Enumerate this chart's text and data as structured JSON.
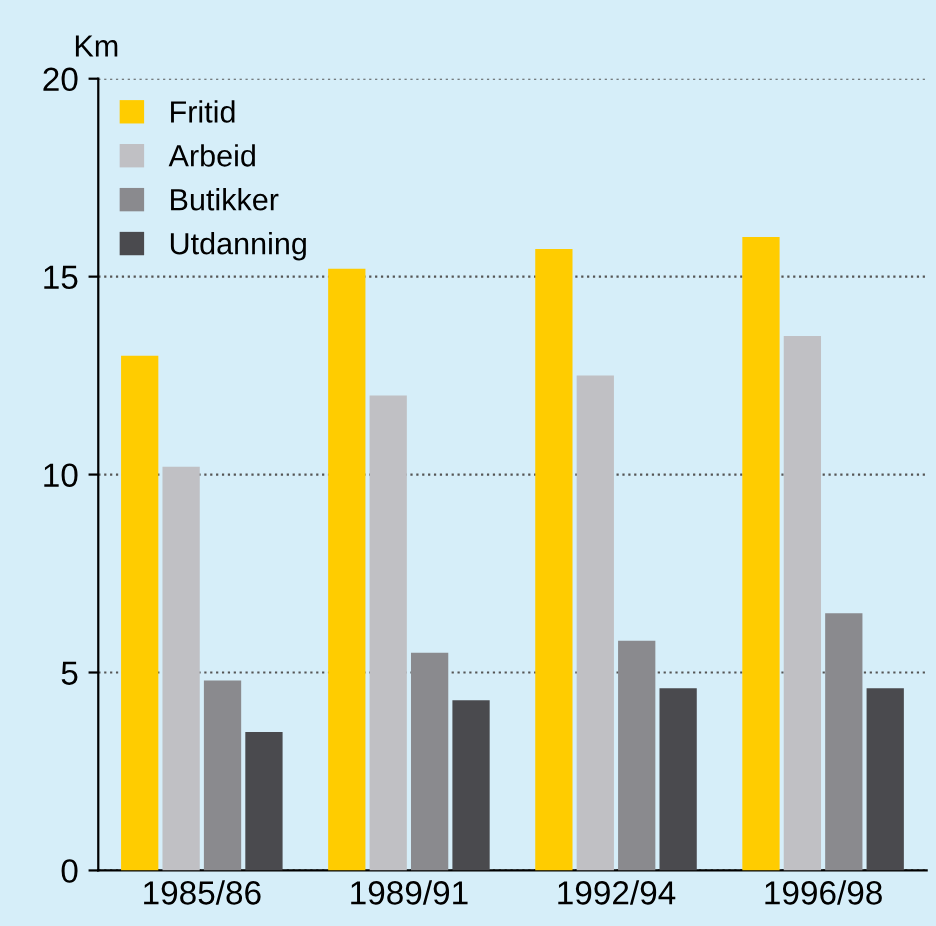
{
  "chart_data": {
    "type": "bar",
    "ylabel": "Km",
    "categories": [
      "1985/86",
      "1989/91",
      "1992/94",
      "1996/98"
    ],
    "series": [
      {
        "name": "Fritid",
        "color": "#ffcc00",
        "values": [
          13.0,
          15.2,
          15.7,
          16.0
        ]
      },
      {
        "name": "Arbeid",
        "color": "#c0c0c4",
        "values": [
          10.2,
          12.0,
          12.5,
          13.5
        ]
      },
      {
        "name": "Butikker",
        "color": "#8a8a8e",
        "values": [
          4.8,
          5.5,
          5.8,
          6.5
        ]
      },
      {
        "name": "Utdanning",
        "color": "#4a4a4e",
        "values": [
          3.5,
          4.3,
          4.6,
          4.6
        ]
      }
    ],
    "ylim": [
      0,
      20
    ],
    "yticks": [
      0,
      5,
      10,
      15,
      20
    ],
    "grid": "y",
    "legend": "top left"
  }
}
